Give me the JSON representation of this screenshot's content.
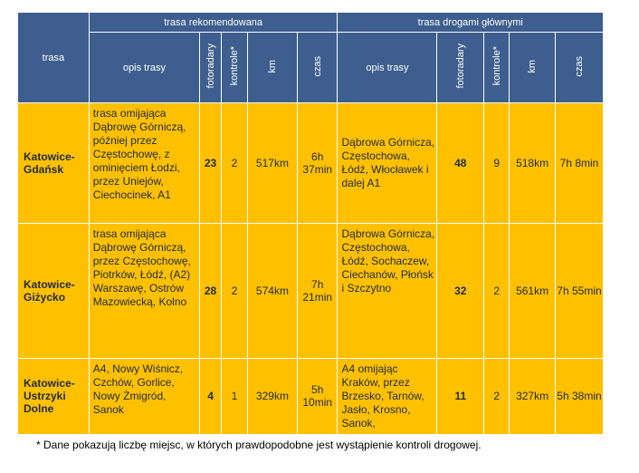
{
  "header": {
    "route": "trasa",
    "recommended": "trasa rekomendowana",
    "main_roads": "trasa drogami głównymi",
    "description": "opis trasy",
    "speed_cameras": "fotoradary",
    "checks": "kontrole*",
    "km": "km",
    "time": "czas"
  },
  "rows": [
    {
      "route": "Katowice-Gdańsk",
      "rec_desc": "trasa omijająca Dąbrowę Górniczą, później przez Częstochowę, z ominięciem Łodzi, przez Uniejów, Ciechocinek, A1",
      "rec_cameras": "23",
      "rec_checks": "2",
      "rec_km": "517km",
      "rec_time": "6h 37min",
      "main_desc": "Dąbrowa Górnicza, Częstochowa, Łódź, Włocławek i dalej A1",
      "main_cameras": "48",
      "main_checks": "9",
      "main_km": "518km",
      "main_time": "7h 8min"
    },
    {
      "route": "Katowice-Giżycko",
      "rec_desc": "trasa omijająca Dąbrowę Górniczą, przez Częstochowę, Piotrków, Łódź, (A2) Warszawę, Ostrów Mazowiecką, Kolno",
      "rec_cameras": "28",
      "rec_checks": "2",
      "rec_km": "574km",
      "rec_time": "7h 21min",
      "main_desc": "Dąbrowa Górnicza, Częstochowa, Łódź, Sochaczew, Ciechanów, Płońsk i Szczytno",
      "main_cameras": "32",
      "main_checks": "2",
      "main_km": "561km",
      "main_time": "7h 55min"
    },
    {
      "route": "Katowice-Ustrzyki Dolne",
      "rec_desc": "A4, Nowy Wiśnicz, Czchów, Gorlice, Nowy Żmigród, Sanok",
      "rec_cameras": "4",
      "rec_checks": "1",
      "rec_km": "329km",
      "rec_time": "5h 10min",
      "main_desc": "A4 omijając Kraków, przez Brzesko, Tarnów, Jasło, Krosno, Sanok,",
      "main_cameras": "11",
      "main_checks": "2",
      "main_km": "327km",
      "main_time": "5h 38min"
    }
  ],
  "footnote": "* Dane pokazują liczbę miejsc, w których prawdopodobne jest wystąpienie kontroli drogowej."
}
